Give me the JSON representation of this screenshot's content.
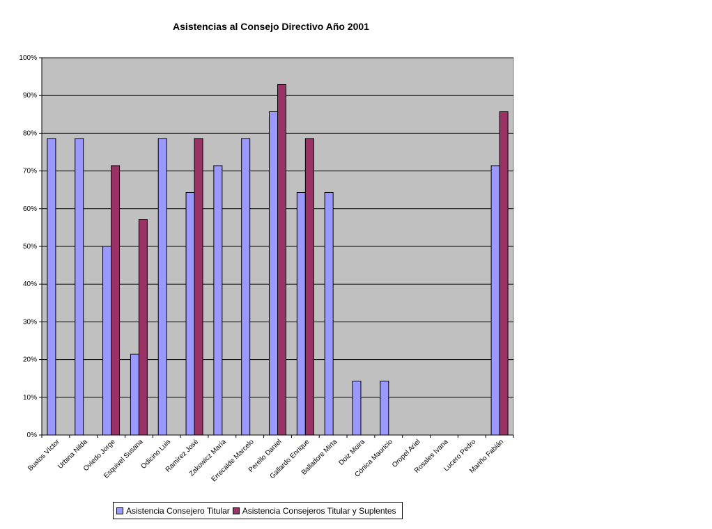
{
  "chart_data": {
    "type": "bar",
    "title": "Asistencias al Consejo Directivo Año 2001",
    "categories": [
      "Bustos Víctor",
      "Urbina Nilda",
      "Oviedo Jorge",
      "Esquivel Susana",
      "Odicino Luis",
      "Ramírez José",
      "Zakowicz María",
      "Errecalde Marcelo",
      "Perello Daniel",
      "Gallardo Enrique",
      "Balladore Mirta",
      "Doiz Moira",
      "Cónica Mauricio",
      "Oropel Ariel",
      "Rosales Ivana",
      "Lucero Pedro",
      "Mariño Fabián"
    ],
    "series": [
      {
        "name": "Asistencia Consejero Titular",
        "color": "#9999FF",
        "values": [
          78.6,
          78.6,
          50,
          21.4,
          78.6,
          64.3,
          71.4,
          78.6,
          85.7,
          64.3,
          64.3,
          14.3,
          14.3,
          0,
          0,
          0,
          71.4
        ]
      },
      {
        "name": "Asistencia Consejeros Titular y Suplentes",
        "color": "#993366",
        "values": [
          0,
          0,
          71.4,
          57.1,
          0,
          78.6,
          0,
          0,
          92.9,
          78.6,
          0,
          0,
          0,
          0,
          0,
          0,
          85.7
        ]
      }
    ],
    "ylim": [
      0,
      100
    ],
    "yticks": [
      "0%",
      "10%",
      "20%",
      "30%",
      "40%",
      "50%",
      "60%",
      "70%",
      "80%",
      "90%",
      "100%"
    ],
    "xlabel": "",
    "ylabel": "",
    "grid": true,
    "plot_background": "#C0C0C0",
    "legend_position": "bottom"
  }
}
